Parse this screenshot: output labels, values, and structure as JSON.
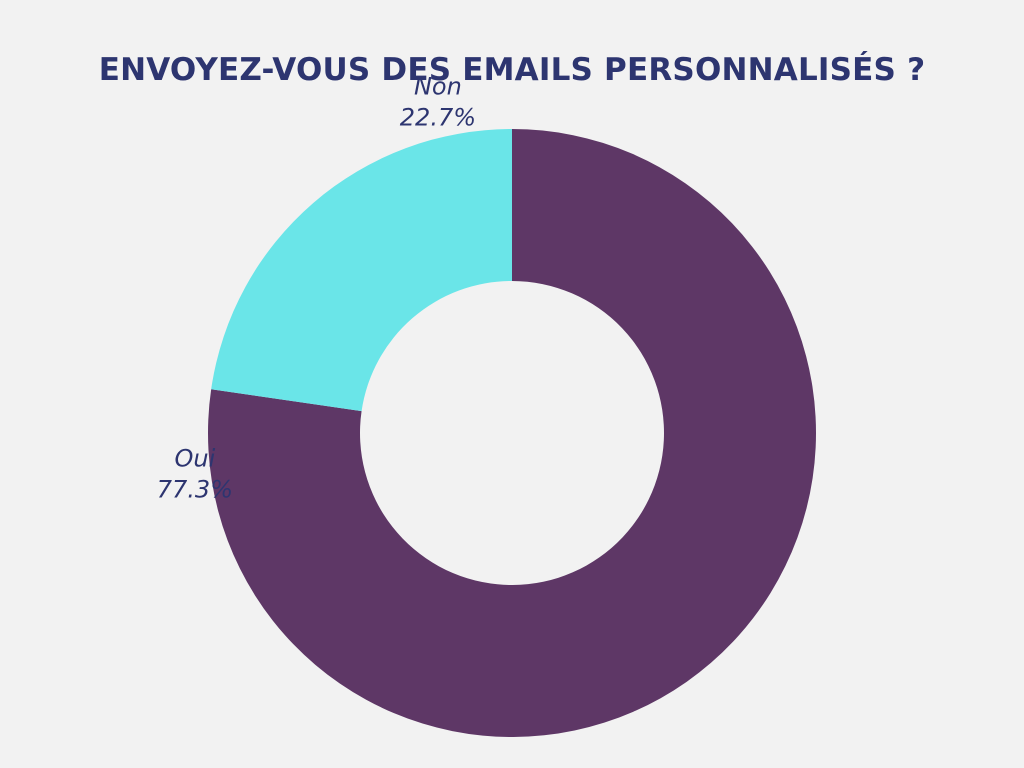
{
  "chart_data": {
    "type": "pie",
    "title": "ENVOYEZ-VOUS DES EMAILS PERSONNALISÉS ?",
    "donut": true,
    "slices": [
      {
        "label": "Oui",
        "value": 77.3,
        "value_label": "77.3%",
        "color": "#5e3766"
      },
      {
        "label": "Non",
        "value": 22.7,
        "value_label": "22.7%",
        "color": "#6ae5e8"
      }
    ],
    "background": "#f2f2f2",
    "text_color": "#2d3570"
  }
}
